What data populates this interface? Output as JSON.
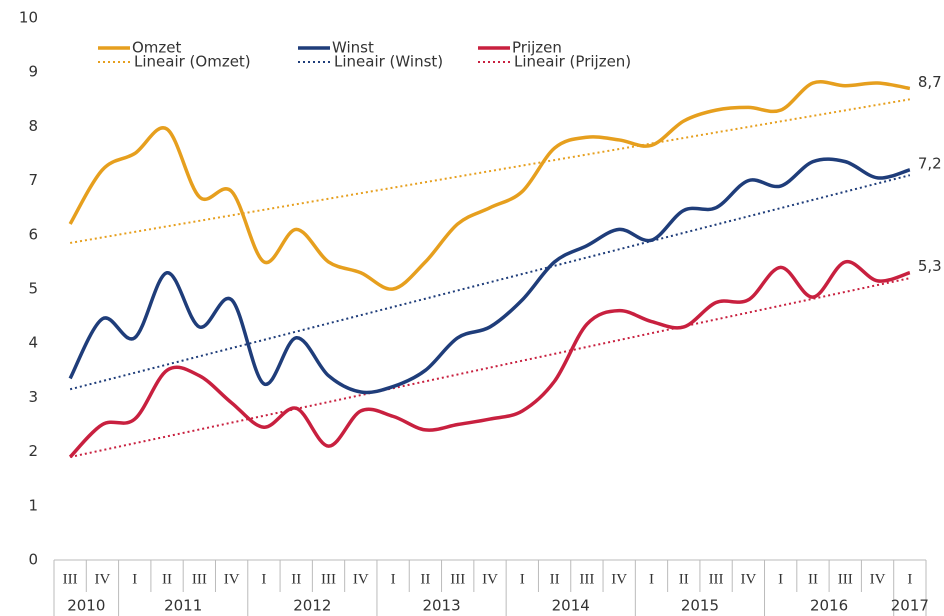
{
  "chart_data": {
    "type": "line",
    "categories": [
      "III",
      "IV",
      "I",
      "II",
      "III",
      "IV",
      "I",
      "II",
      "III",
      "IV",
      "I",
      "II",
      "III",
      "IV",
      "I",
      "II",
      "III",
      "IV",
      "I",
      "II",
      "III",
      "IV",
      "I",
      "II",
      "III",
      "IV",
      "I"
    ],
    "years": [
      "2010",
      "2011",
      "2012",
      "2013",
      "2014",
      "2015",
      "2016",
      "2017"
    ],
    "series": [
      {
        "name": "Omzet",
        "color": "#e69f1e",
        "end_label": "8,7",
        "values": [
          6.2,
          7.2,
          7.5,
          7.95,
          6.7,
          6.8,
          5.5,
          6.1,
          5.5,
          5.3,
          5.0,
          5.5,
          6.2,
          6.5,
          6.8,
          7.6,
          7.8,
          7.75,
          7.65,
          8.1,
          8.3,
          8.35,
          8.3,
          8.8,
          8.75,
          8.8,
          8.7
        ]
      },
      {
        "name": "Winst",
        "color": "#1f3d7a",
        "end_label": "7,2",
        "values": [
          3.35,
          4.45,
          4.1,
          5.3,
          4.3,
          4.8,
          3.25,
          4.1,
          3.4,
          3.1,
          3.2,
          3.5,
          4.1,
          4.3,
          4.8,
          5.5,
          5.8,
          6.1,
          5.9,
          6.45,
          6.5,
          7.0,
          6.9,
          7.35,
          7.35,
          7.05,
          7.2
        ]
      },
      {
        "name": "Prijzen",
        "color": "#c8203f",
        "end_label": "5,3",
        "values": [
          1.9,
          2.5,
          2.6,
          3.5,
          3.4,
          2.9,
          2.45,
          2.8,
          2.1,
          2.75,
          2.65,
          2.4,
          2.5,
          2.6,
          2.75,
          3.3,
          4.35,
          4.6,
          4.4,
          4.3,
          4.75,
          4.8,
          5.4,
          4.85,
          5.5,
          5.15,
          5.3
        ]
      }
    ],
    "trendlines": [
      {
        "name": "Lineair (Omzet)",
        "color": "#e69f1e",
        "start": 5.85,
        "end": 8.5
      },
      {
        "name": "Lineair (Winst)",
        "color": "#1f3d7a",
        "start": 3.15,
        "end": 7.1
      },
      {
        "name": "Lineair (Prijzen)",
        "color": "#c8203f",
        "start": 1.9,
        "end": 5.2
      }
    ],
    "ylim": [
      0,
      10
    ],
    "yticks": [
      0,
      1,
      2,
      3,
      4,
      5,
      6,
      7,
      8,
      9,
      10
    ],
    "grid": false
  }
}
